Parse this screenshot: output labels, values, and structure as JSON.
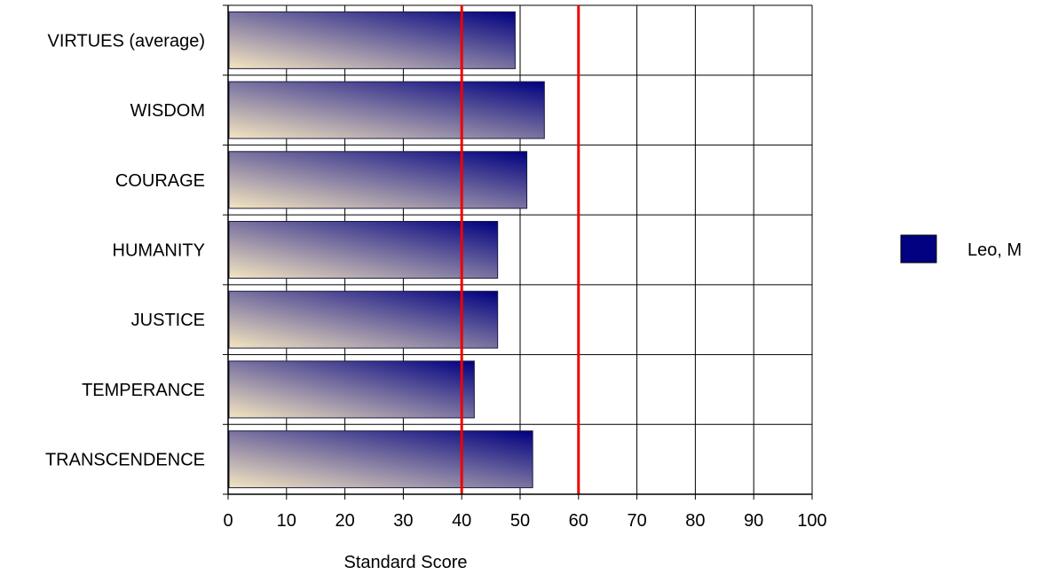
{
  "chart_data": {
    "type": "bar",
    "orientation": "horizontal",
    "categories": [
      "VIRTUES (average)",
      "WISDOM",
      "COURAGE",
      "HUMANITY",
      "JUSTICE",
      "TEMPERANCE",
      "TRANSCENDENCE"
    ],
    "series": [
      {
        "name": "Leo, M",
        "values": [
          49,
          54,
          51,
          46,
          46,
          42,
          52
        ],
        "color": "#000080"
      }
    ],
    "xlabel": "Standard Score",
    "ylabel": "",
    "xlim": [
      0,
      100
    ],
    "xticks": [
      0,
      10,
      20,
      30,
      40,
      50,
      60,
      70,
      80,
      90,
      100
    ],
    "reference_lines": [
      {
        "value": 40,
        "color": "#ee0000"
      },
      {
        "value": 60,
        "color": "#ee0000"
      }
    ],
    "grid": true,
    "legend_position": "right",
    "bar_gradient": [
      "#f5e6c0",
      "#000080"
    ]
  }
}
